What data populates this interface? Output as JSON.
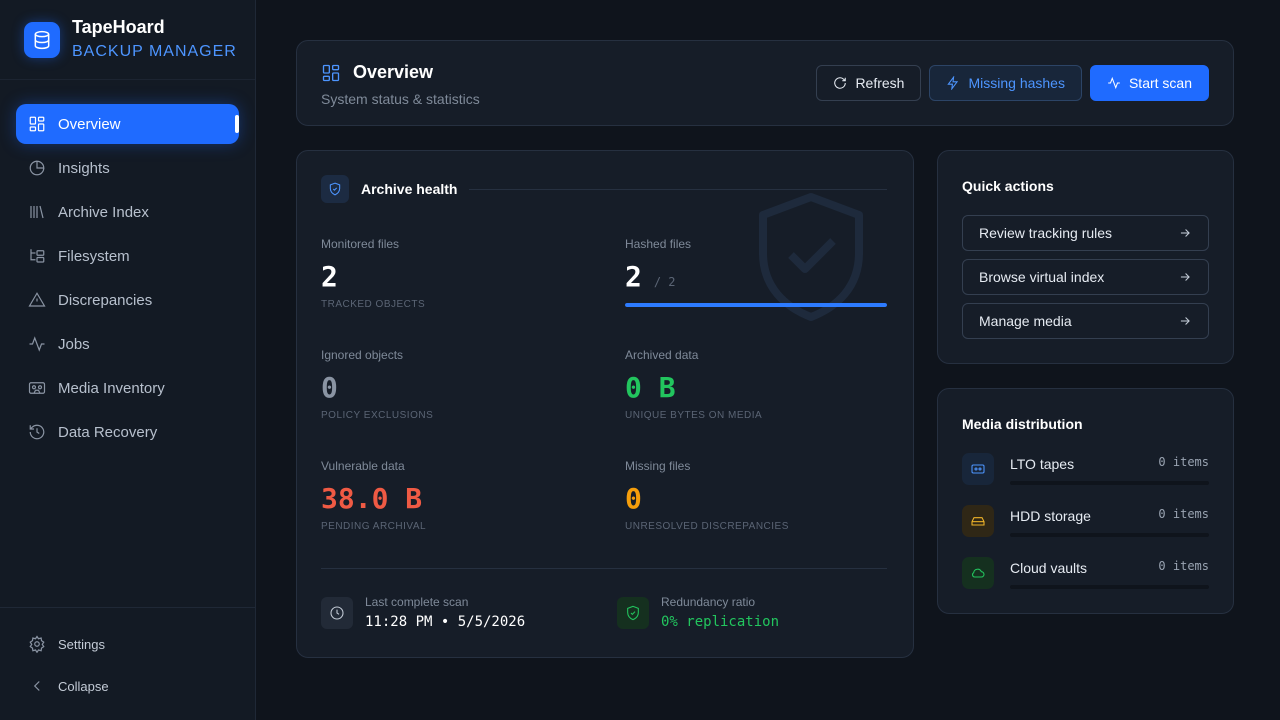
{
  "brand": {
    "title": "TapeHoard",
    "subtitle": "BACKUP MANAGER",
    "icon": "database-icon"
  },
  "sidebar": {
    "items": [
      {
        "label": "Overview",
        "icon": "layout-grid-icon",
        "active": true
      },
      {
        "label": "Insights",
        "icon": "pie-chart-icon",
        "active": false
      },
      {
        "label": "Archive Index",
        "icon": "library-icon",
        "active": false
      },
      {
        "label": "Filesystem",
        "icon": "folder-tree-icon",
        "active": false
      },
      {
        "label": "Discrepancies",
        "icon": "alert-triangle-icon",
        "active": false
      },
      {
        "label": "Jobs",
        "icon": "activity-icon",
        "active": false
      },
      {
        "label": "Media Inventory",
        "icon": "cassette-tape-icon",
        "active": false
      },
      {
        "label": "Data Recovery",
        "icon": "history-icon",
        "active": false
      }
    ],
    "footer": {
      "settings": "Settings",
      "collapse": "Collapse"
    }
  },
  "header": {
    "title": "Overview",
    "subtitle": "System status & statistics",
    "buttons": {
      "refresh": "Refresh",
      "missing_hashes": "Missing hashes",
      "start_scan": "Start scan"
    }
  },
  "health": {
    "title": "Archive health",
    "stats": {
      "monitored": {
        "label": "Monitored files",
        "value": "2",
        "sub": "TRACKED OBJECTS"
      },
      "hashed": {
        "label": "Hashed files",
        "value": "2",
        "total": "/ 2",
        "progress": 1.0
      },
      "ignored": {
        "label": "Ignored objects",
        "value": "0",
        "sub": "POLICY EXCLUSIONS"
      },
      "archived": {
        "label": "Archived data",
        "value": "0 B",
        "sub": "UNIQUE BYTES ON MEDIA"
      },
      "vulnerable": {
        "label": "Vulnerable data",
        "value": "38.0 B",
        "sub": "PENDING ARCHIVAL"
      },
      "missing": {
        "label": "Missing files",
        "value": "0",
        "sub": "UNRESOLVED DISCREPANCIES"
      }
    },
    "last_scan": {
      "label": "Last complete scan",
      "value": "11:28 PM • 5/5/2026"
    },
    "redundancy": {
      "label": "Redundancy ratio",
      "value": "0% replication"
    }
  },
  "quick_actions": {
    "title": "Quick actions",
    "items": [
      "Review tracking rules",
      "Browse virtual index",
      "Manage media"
    ]
  },
  "media": {
    "title": "Media distribution",
    "items": [
      {
        "name": "LTO tapes",
        "count": "0 items",
        "color": "#4d95ff"
      },
      {
        "name": "HDD storage",
        "count": "0 items",
        "color": "#f0b429"
      },
      {
        "name": "Cloud vaults",
        "count": "0 items",
        "color": "#22c55e"
      }
    ]
  },
  "colors": {
    "accent": "#1f6bff",
    "success": "#22c55e",
    "danger": "#ef4444",
    "warning": "#f59e0b",
    "muted": "#9aa4b2"
  }
}
